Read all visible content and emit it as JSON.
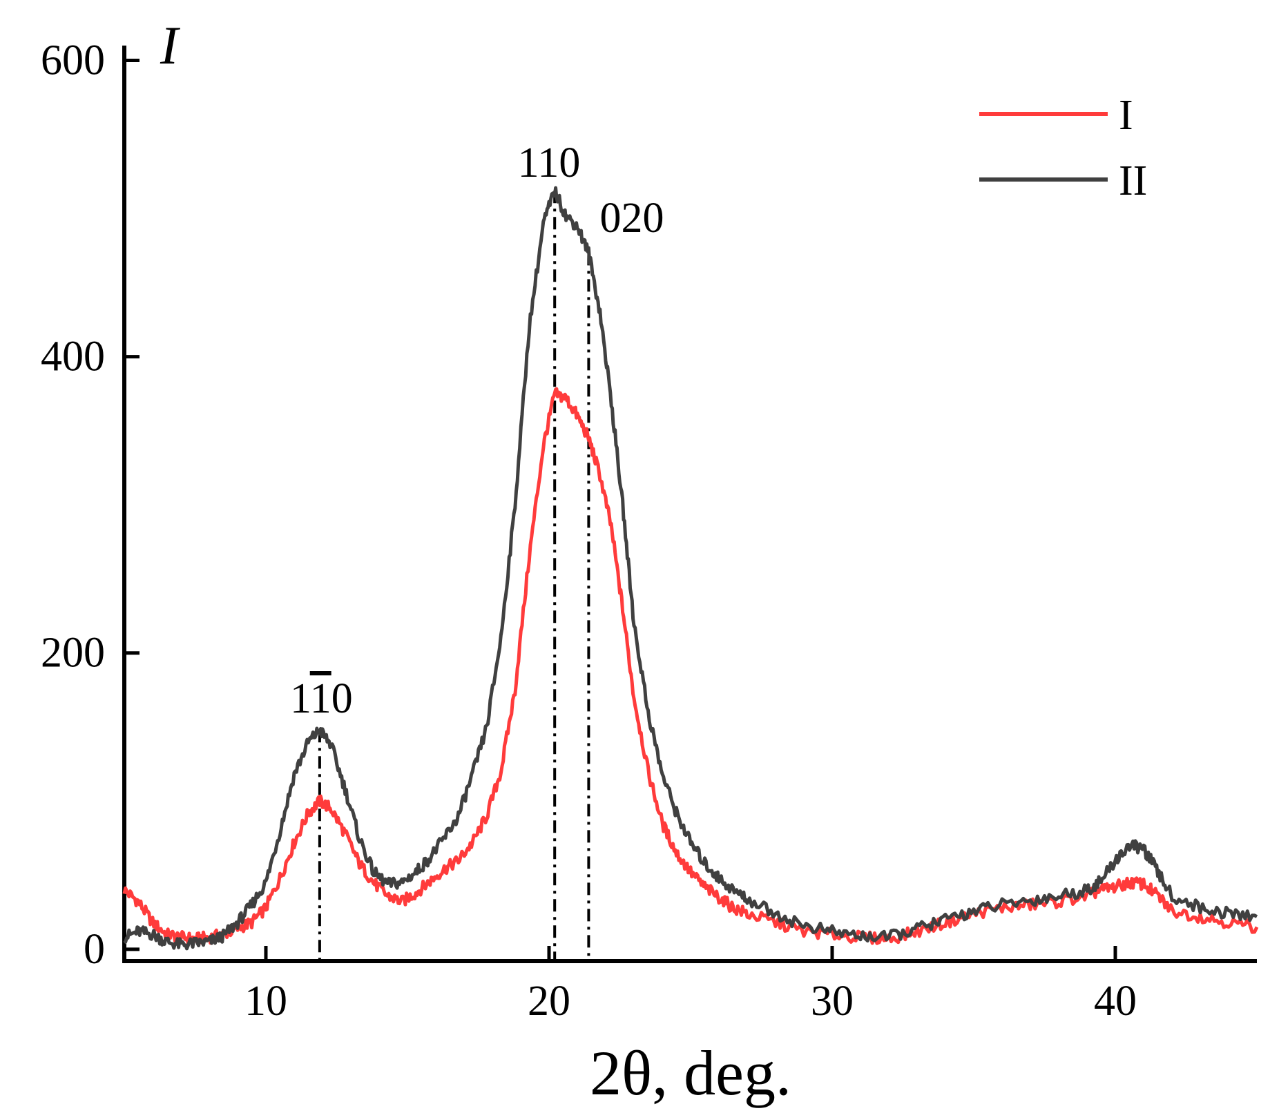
{
  "chart_data": {
    "type": "line",
    "title": "",
    "xlabel": "2θ, deg.",
    "ylabel": "I",
    "xlim": [
      5,
      45
    ],
    "ylim": [
      -8,
      610
    ],
    "xticks": [
      10,
      20,
      30,
      40
    ],
    "yticks": [
      0,
      200,
      400,
      600
    ],
    "grid": false,
    "legend_position": "top-right",
    "series": [
      {
        "name": "I",
        "color": "#ff3b3b",
        "x": [
          5,
          5.5,
          6,
          6.5,
          7,
          7.5,
          8,
          8.5,
          9,
          9.5,
          10,
          10.5,
          11,
          11.5,
          11.9,
          12.3,
          12.8,
          13.3,
          13.8,
          14.3,
          14.8,
          15.3,
          15.8,
          16.3,
          16.8,
          17.3,
          17.8,
          18.3,
          18.8,
          19.3,
          19.8,
          20.2,
          20.6,
          21.0,
          21.4,
          21.8,
          22.2,
          22.6,
          23.0,
          23.5,
          24.0,
          24.5,
          25,
          25.5,
          26,
          26.5,
          27,
          28,
          29,
          30,
          31,
          32,
          33,
          34,
          35,
          36,
          37,
          38,
          39,
          39.5,
          40,
          40.5,
          41,
          41.5,
          42,
          43,
          44,
          45
        ],
        "y": [
          40,
          32,
          18,
          10,
          8,
          7,
          8,
          10,
          14,
          18,
          28,
          48,
          72,
          92,
          100,
          95,
          78,
          58,
          45,
          36,
          32,
          38,
          46,
          54,
          60,
          72,
          90,
          120,
          175,
          265,
          340,
          375,
          372,
          360,
          345,
          320,
          285,
          230,
          170,
          120,
          85,
          65,
          52,
          42,
          35,
          28,
          24,
          18,
          12,
          10,
          8,
          7,
          12,
          18,
          24,
          28,
          30,
          32,
          36,
          40,
          42,
          45,
          44,
          36,
          26,
          22,
          18,
          15
        ]
      },
      {
        "name": "II",
        "color": "#404040",
        "x": [
          5,
          5.5,
          6,
          6.5,
          7,
          7.5,
          8,
          8.5,
          9,
          9.5,
          10,
          10.5,
          11,
          11.5,
          11.9,
          12.3,
          12.8,
          13.3,
          13.8,
          14.3,
          14.8,
          15.3,
          15.8,
          16.3,
          16.8,
          17.3,
          17.8,
          18.3,
          18.8,
          19.3,
          19.8,
          20.2,
          20.6,
          21.0,
          21.4,
          21.8,
          22.2,
          22.6,
          23.0,
          23.5,
          24.0,
          24.5,
          25,
          25.5,
          26,
          26.5,
          27,
          28,
          29,
          30,
          31,
          32,
          33,
          34,
          35,
          36,
          37,
          38,
          39,
          39.5,
          40,
          40.5,
          41,
          41.5,
          42,
          43,
          44,
          45
        ],
        "y": [
          8,
          12,
          10,
          5,
          3,
          4,
          5,
          9,
          18,
          30,
          45,
          80,
          118,
          140,
          148,
          138,
          108,
          75,
          52,
          44,
          45,
          52,
          62,
          75,
          90,
          118,
          150,
          210,
          300,
          420,
          490,
          512,
          495,
          488,
          470,
          430,
          370,
          300,
          220,
          160,
          118,
          92,
          72,
          58,
          48,
          40,
          34,
          24,
          16,
          12,
          9,
          8,
          14,
          20,
          26,
          30,
          33,
          36,
          40,
          46,
          60,
          70,
          68,
          52,
          36,
          28,
          24,
          22
        ]
      }
    ],
    "annotations": [
      {
        "text": "1",
        "overbar_digit": "1",
        "text_after": "0",
        "x": 11.9,
        "dashed_line": true
      },
      {
        "text": "110",
        "x": 20.2,
        "dashed_line": true
      },
      {
        "text": "020",
        "x": 21.4,
        "dashed_line": true
      }
    ]
  }
}
